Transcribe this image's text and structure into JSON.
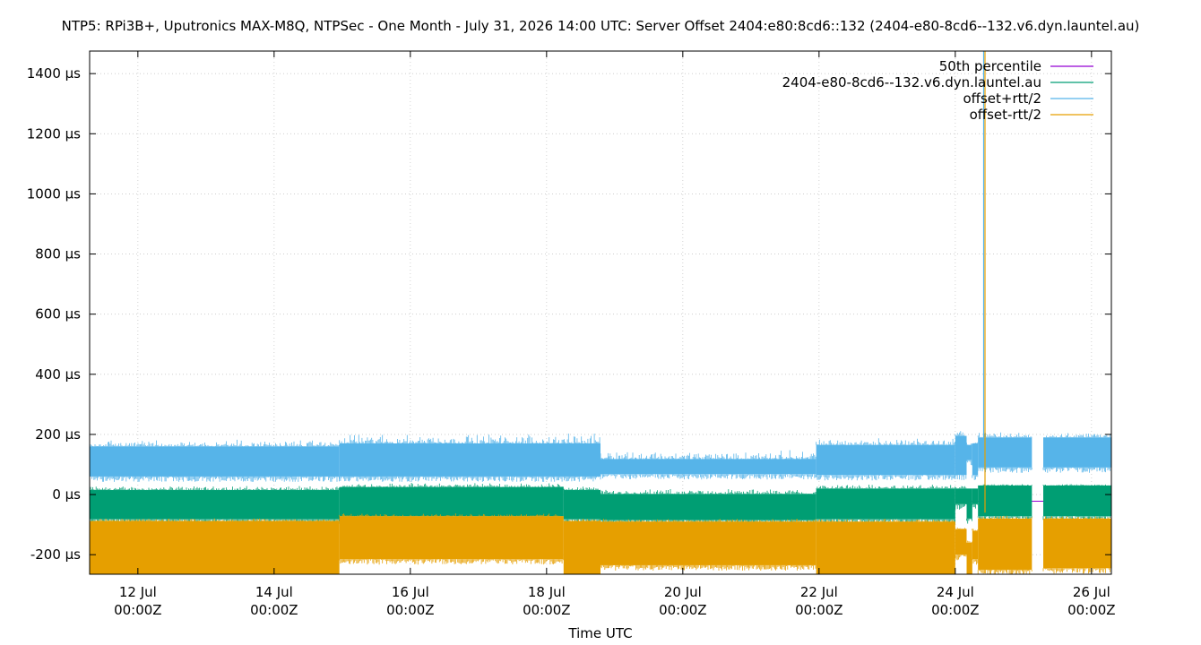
{
  "chart_data": {
    "type": "area",
    "title": "NTP5: RPi3B+, Uputronics MAX-M8Q, NTPSec - One Month - July 31, 2026 14:00 UTC: Server Offset 2404:e80:8cd6::132 (2404-e80-8cd6--132.v6.dyn.launtel.au)",
    "xlabel": "Time UTC",
    "ylabel": "",
    "xlim": [
      "2026-07-11 07:00",
      "2026-07-26 07:00"
    ],
    "ylim": [
      -265,
      1475
    ],
    "x_ticks": [
      {
        "value": "2026-07-12 00:00",
        "label": [
          "12 Jul",
          "00:00Z"
        ]
      },
      {
        "value": "2026-07-14 00:00",
        "label": [
          "14 Jul",
          "00:00Z"
        ]
      },
      {
        "value": "2026-07-16 00:00",
        "label": [
          "16 Jul",
          "00:00Z"
        ]
      },
      {
        "value": "2026-07-18 00:00",
        "label": [
          "18 Jul",
          "00:00Z"
        ]
      },
      {
        "value": "2026-07-20 00:00",
        "label": [
          "20 Jul",
          "00:00Z"
        ]
      },
      {
        "value": "2026-07-22 00:00",
        "label": [
          "22 Jul",
          "00:00Z"
        ]
      },
      {
        "value": "2026-07-24 00:00",
        "label": [
          "24 Jul",
          "00:00Z"
        ]
      },
      {
        "value": "2026-07-26 00:00",
        "label": [
          "26 Jul",
          "00:00Z"
        ]
      }
    ],
    "y_ticks": [
      {
        "value": -200,
        "label": "-200 µs"
      },
      {
        "value": 0,
        "label": "0 µs"
      },
      {
        "value": 200,
        "label": "200 µs"
      },
      {
        "value": 400,
        "label": "400 µs"
      },
      {
        "value": 600,
        "label": "600 µs"
      },
      {
        "value": 800,
        "label": "800 µs"
      },
      {
        "value": 1000,
        "label": "1000 µs"
      },
      {
        "value": 1200,
        "label": "1200 µs"
      },
      {
        "value": 1400,
        "label": "1400 µs"
      }
    ],
    "grid": true,
    "legend_position": "top-right",
    "series": [
      {
        "name": "50th percentile",
        "color": "#9400d3",
        "kind": "line",
        "points": [
          [
            "2026-07-24 00:00",
            -22
          ],
          [
            "2026-07-26 07:00",
            -22
          ]
        ]
      },
      {
        "name": "2404-e80-8cd6--132.v6.dyn.launtel.au",
        "color": "#009e73",
        "kind": "band",
        "segments": [
          {
            "from": "2026-07-11 07:00",
            "to": "2026-07-14 23:00",
            "low": -82,
            "high": 15,
            "spike": 30
          },
          {
            "from": "2026-07-14 23:00",
            "to": "2026-07-18 06:00",
            "low": -72,
            "high": 25,
            "spike": 40
          },
          {
            "from": "2026-07-18 06:00",
            "to": "2026-07-18 19:00",
            "low": -82,
            "high": 15,
            "spike": 30
          },
          {
            "from": "2026-07-18 19:00",
            "to": "2026-07-21 23:00",
            "low": -85,
            "high": 2,
            "spike": 20
          },
          {
            "from": "2026-07-21 23:00",
            "to": "2026-07-24 00:00",
            "low": -82,
            "high": 20,
            "spike": 35
          },
          {
            "from": "2026-07-24 00:00",
            "to": "2026-07-24 04:00",
            "low": -32,
            "high": 20,
            "spike": 30
          },
          {
            "from": "2026-07-24 04:00",
            "to": "2026-07-24 06:00",
            "low": -80,
            "high": 20,
            "spike": 20
          },
          {
            "from": "2026-07-24 06:00",
            "to": "2026-07-24 08:00",
            "low": -32,
            "high": 20,
            "spike": 20
          },
          {
            "from": "2026-07-24 08:00",
            "to": "2026-07-25 03:00",
            "low": -72,
            "high": 30,
            "spike": 35
          },
          {
            "from": "2026-07-25 03:00",
            "to": "2026-07-25 07:00",
            "low": null,
            "high": null,
            "spike": 0
          },
          {
            "from": "2026-07-25 07:00",
            "to": "2026-07-26 07:00",
            "low": -72,
            "high": 30,
            "spike": 35
          }
        ]
      },
      {
        "name": "offset+rtt/2",
        "color": "#56b4e9",
        "kind": "band",
        "segments": [
          {
            "from": "2026-07-11 07:00",
            "to": "2026-07-14 23:00",
            "low": 60,
            "high": 160,
            "spike": 185
          },
          {
            "from": "2026-07-14 23:00",
            "to": "2026-07-18 19:00",
            "low": 60,
            "high": 170,
            "spike": 205
          },
          {
            "from": "2026-07-18 19:00",
            "to": "2026-07-21 23:00",
            "low": 68,
            "high": 118,
            "spike": 150
          },
          {
            "from": "2026-07-21 23:00",
            "to": "2026-07-24 00:00",
            "low": 65,
            "high": 165,
            "spike": 190
          },
          {
            "from": "2026-07-24 00:00",
            "to": "2026-07-24 04:00",
            "low": 65,
            "high": 195,
            "spike": 215
          },
          {
            "from": "2026-07-24 04:00",
            "to": "2026-07-24 06:00",
            "low": 115,
            "high": 165,
            "spike": 190
          },
          {
            "from": "2026-07-24 06:00",
            "to": "2026-07-24 08:00",
            "low": 65,
            "high": 170,
            "spike": 180
          },
          {
            "from": "2026-07-24 08:00",
            "to": "2026-07-25 03:00",
            "low": 90,
            "high": 190,
            "spike": 210
          },
          {
            "from": "2026-07-25 03:00",
            "to": "2026-07-25 07:00",
            "low": null,
            "high": null,
            "spike": 0
          },
          {
            "from": "2026-07-25 07:00",
            "to": "2026-07-26 07:00",
            "low": 90,
            "high": 190,
            "spike": 210
          }
        ],
        "vertical_spike": {
          "at": "2026-07-24 10:00",
          "from": 130,
          "to": 1475
        }
      },
      {
        "name": "offset-rtt/2",
        "color": "#e69f00",
        "kind": "band",
        "segments": [
          {
            "from": "2026-07-11 07:00",
            "to": "2026-07-14 23:00",
            "low": -265,
            "high": -88,
            "spike": -78
          },
          {
            "from": "2026-07-14 23:00",
            "to": "2026-07-18 06:00",
            "low": -215,
            "high": -72,
            "spike": -62
          },
          {
            "from": "2026-07-18 06:00",
            "to": "2026-07-18 19:00",
            "low": -265,
            "high": -88,
            "spike": -80
          },
          {
            "from": "2026-07-18 19:00",
            "to": "2026-07-21 23:00",
            "low": -235,
            "high": -90,
            "spike": -80
          },
          {
            "from": "2026-07-21 23:00",
            "to": "2026-07-24 00:00",
            "low": -265,
            "high": -90,
            "spike": -80
          },
          {
            "from": "2026-07-24 00:00",
            "to": "2026-07-24 04:00",
            "low": -200,
            "high": -115,
            "spike": -105
          },
          {
            "from": "2026-07-24 04:00",
            "to": "2026-07-24 06:00",
            "low": -265,
            "high": -160,
            "spike": -150
          },
          {
            "from": "2026-07-24 06:00",
            "to": "2026-07-24 08:00",
            "low": -215,
            "high": -120,
            "spike": -110
          },
          {
            "from": "2026-07-24 08:00",
            "to": "2026-07-25 03:00",
            "low": -250,
            "high": -80,
            "spike": -70
          },
          {
            "from": "2026-07-25 03:00",
            "to": "2026-07-25 07:00",
            "low": null,
            "high": null,
            "spike": 0
          },
          {
            "from": "2026-07-25 07:00",
            "to": "2026-07-26 07:00",
            "low": -245,
            "high": -80,
            "spike": -70
          }
        ],
        "vertical_spike": {
          "at": "2026-07-24 10:00",
          "from": -60,
          "to": 1475
        }
      }
    ]
  }
}
